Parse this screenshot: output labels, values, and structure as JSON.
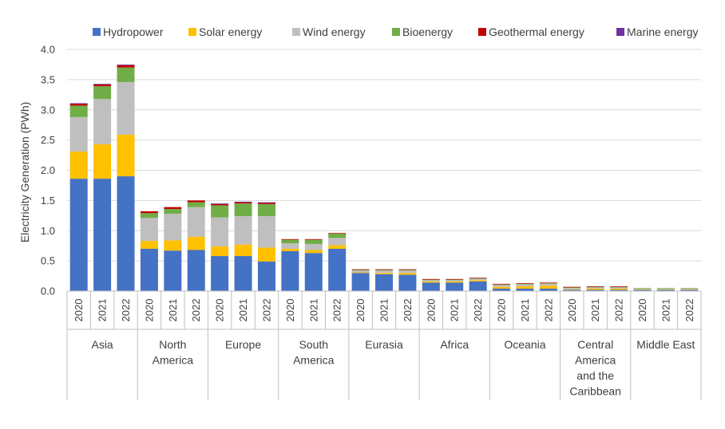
{
  "chart_data": {
    "type": "bar",
    "stacked": true,
    "title": "",
    "xlabel": "",
    "ylabel": "Electricity Generation (PWh)",
    "ylim": [
      0,
      4.0
    ],
    "yticks": [
      "0.0",
      "0.5",
      "1.0",
      "1.5",
      "2.0",
      "2.5",
      "3.0",
      "3.5",
      "4.0"
    ],
    "grid": true,
    "legend_position": "top",
    "groups": [
      {
        "label": [
          "Asia"
        ],
        "years": [
          "2020",
          "2021",
          "2022"
        ]
      },
      {
        "label": [
          "North",
          "America"
        ],
        "years": [
          "2020",
          "2021",
          "2022"
        ]
      },
      {
        "label": [
          "Europe"
        ],
        "years": [
          "2020",
          "2021",
          "2022"
        ]
      },
      {
        "label": [
          "South",
          "America"
        ],
        "years": [
          "2020",
          "2021",
          "2022"
        ]
      },
      {
        "label": [
          "Eurasia"
        ],
        "years": [
          "2020",
          "2021",
          "2022"
        ]
      },
      {
        "label": [
          "Africa"
        ],
        "years": [
          "2020",
          "2021",
          "2022"
        ]
      },
      {
        "label": [
          "Oceania"
        ],
        "years": [
          "2020",
          "2021",
          "2022"
        ]
      },
      {
        "label": [
          "Central",
          "America",
          "and the",
          "Caribbean"
        ],
        "years": [
          "2020",
          "2021",
          "2022"
        ]
      },
      {
        "label": [
          "Middle East"
        ],
        "years": [
          "2020",
          "2021",
          "2022"
        ]
      }
    ],
    "series": [
      {
        "name": "Hydropower",
        "color": "#4472C4",
        "values": [
          1.86,
          1.86,
          1.9,
          0.7,
          0.67,
          0.68,
          0.58,
          0.58,
          0.49,
          0.66,
          0.63,
          0.7,
          0.3,
          0.28,
          0.27,
          0.14,
          0.14,
          0.16,
          0.04,
          0.04,
          0.04,
          0.02,
          0.02,
          0.02,
          0.02,
          0.02,
          0.02
        ]
      },
      {
        "name": "Solar energy",
        "color": "#FFC000",
        "values": [
          0.45,
          0.57,
          0.69,
          0.13,
          0.17,
          0.22,
          0.16,
          0.19,
          0.23,
          0.04,
          0.05,
          0.06,
          0.01,
          0.02,
          0.03,
          0.02,
          0.02,
          0.02,
          0.03,
          0.04,
          0.05,
          0.01,
          0.02,
          0.02,
          0.01,
          0.01,
          0.01
        ]
      },
      {
        "name": "Wind energy",
        "color": "#BFBFBF",
        "values": [
          0.57,
          0.75,
          0.87,
          0.38,
          0.44,
          0.49,
          0.48,
          0.47,
          0.52,
          0.09,
          0.1,
          0.12,
          0.03,
          0.04,
          0.04,
          0.02,
          0.02,
          0.02,
          0.03,
          0.03,
          0.03,
          0.02,
          0.02,
          0.02,
          0.01,
          0.01,
          0.01
        ]
      },
      {
        "name": "Bioenergy",
        "color": "#70AD47",
        "values": [
          0.19,
          0.21,
          0.24,
          0.08,
          0.08,
          0.08,
          0.2,
          0.21,
          0.2,
          0.06,
          0.07,
          0.07,
          0.01,
          0.01,
          0.01,
          0.01,
          0.01,
          0.01,
          0.01,
          0.01,
          0.01,
          0.01,
          0.01,
          0.01,
          0.01,
          0.01,
          0.01
        ]
      },
      {
        "name": "Geothermal energy",
        "color": "#C00000",
        "values": [
          0.03,
          0.03,
          0.04,
          0.03,
          0.03,
          0.03,
          0.02,
          0.02,
          0.02,
          0.01,
          0.01,
          0.01,
          0.01,
          0.01,
          0.01,
          0.01,
          0.01,
          0.01,
          0.01,
          0.01,
          0.01,
          0.01,
          0.01,
          0.01,
          0.0,
          0.0,
          0.0
        ]
      },
      {
        "name": "Marine energy",
        "color": "#7030A0",
        "values": [
          0.01,
          0.01,
          0.01,
          0.0,
          0.0,
          0.0,
          0.01,
          0.01,
          0.01,
          0.0,
          0.0,
          0.0,
          0.0,
          0.0,
          0.0,
          0.0,
          0.0,
          0.0,
          0.0,
          0.0,
          0.0,
          0.0,
          0.0,
          0.0,
          0.0,
          0.0,
          0.0
        ]
      }
    ]
  }
}
